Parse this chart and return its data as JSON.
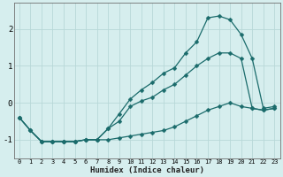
{
  "xlabel": "Humidex (Indice chaleur)",
  "background_color": "#d6eeee",
  "grid_color": "#b8d8d8",
  "line_color": "#1a6b6b",
  "xlim": [
    -0.5,
    23.5
  ],
  "ylim": [
    -1.5,
    2.7
  ],
  "yticks": [
    -1,
    0,
    1,
    2
  ],
  "xticks": [
    0,
    1,
    2,
    3,
    4,
    5,
    6,
    7,
    8,
    9,
    10,
    11,
    12,
    13,
    14,
    15,
    16,
    17,
    18,
    19,
    20,
    21,
    22,
    23
  ],
  "line1_x": [
    0,
    1,
    2,
    3,
    4,
    5,
    6,
    7,
    8,
    9,
    10,
    11,
    12,
    13,
    14,
    15,
    16,
    17,
    18,
    19,
    20,
    21,
    22,
    23
  ],
  "line1_y": [
    -0.4,
    -0.75,
    -1.05,
    -1.05,
    -1.05,
    -1.05,
    -1.0,
    -1.0,
    -1.0,
    -0.95,
    -0.9,
    -0.85,
    -0.8,
    -0.75,
    -0.65,
    -0.5,
    -0.35,
    -0.2,
    -0.1,
    0.0,
    -0.1,
    -0.15,
    -0.2,
    -0.15
  ],
  "line2_x": [
    0,
    1,
    2,
    3,
    4,
    5,
    6,
    7,
    8,
    9,
    10,
    11,
    12,
    13,
    14,
    15,
    16,
    17,
    18,
    19,
    20,
    21,
    22,
    23
  ],
  "line2_y": [
    -0.4,
    -0.75,
    -1.05,
    -1.05,
    -1.05,
    -1.05,
    -1.0,
    -1.0,
    -0.7,
    -0.5,
    -0.1,
    0.05,
    0.15,
    0.35,
    0.5,
    0.75,
    1.0,
    1.2,
    1.35,
    1.35,
    1.2,
    -0.15,
    -0.2,
    -0.15
  ],
  "line3_x": [
    0,
    1,
    2,
    3,
    4,
    5,
    6,
    7,
    8,
    9,
    10,
    11,
    12,
    13,
    14,
    15,
    16,
    17,
    18,
    19,
    20,
    21,
    22,
    23
  ],
  "line3_y": [
    -0.4,
    -0.75,
    -1.05,
    -1.05,
    -1.05,
    -1.05,
    -1.0,
    -1.0,
    -0.7,
    -0.3,
    0.1,
    0.35,
    0.55,
    0.8,
    0.95,
    1.35,
    1.65,
    2.3,
    2.35,
    2.25,
    1.85,
    1.2,
    -0.15,
    -0.1
  ]
}
